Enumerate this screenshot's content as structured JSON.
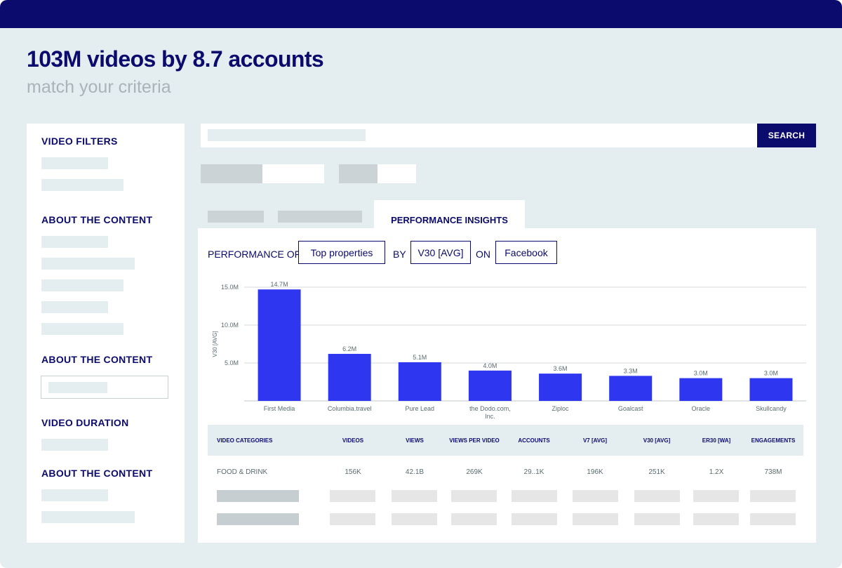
{
  "hero": {
    "title": "103M videos by 8.7 accounts",
    "subtitle": "match your criteria"
  },
  "sidebar": {
    "sections": [
      {
        "title": "VIDEO FILTERS"
      },
      {
        "title": "ABOUT THE CONTENT"
      },
      {
        "title": "ABOUT THE CONTENT"
      },
      {
        "title": "VIDEO DURATION"
      },
      {
        "title": "ABOUT THE CONTENT"
      }
    ]
  },
  "search": {
    "button_label": "SEARCH"
  },
  "tabs": {
    "active_label": "PERFORMANCE INSIGHTS"
  },
  "performance": {
    "prefix": "PERFORMANCE OF",
    "property_select": "Top properties",
    "by_label": "BY",
    "metric_select": "V30 [AVG]",
    "on_label": "ON",
    "platform_select": "Facebook"
  },
  "chart_data": {
    "type": "bar",
    "categories": [
      "First Media",
      "Columbia.travel",
      "Pure Lead",
      "the Dodo.com, Inc.",
      "Ziploc",
      "Goalcast",
      "Oracle",
      "Skullcandy"
    ],
    "values": [
      14.7,
      6.2,
      5.1,
      4.0,
      3.6,
      3.3,
      3.0,
      3.0
    ],
    "value_labels": [
      "14.7M",
      "6.2M",
      "5.1M",
      "4.0M",
      "3.6M",
      "3.3M",
      "3.0M",
      "3.0M"
    ],
    "ylabel": "V30 [AVG]",
    "yticks": [
      "5.0M",
      "10.0M",
      "15.0M"
    ],
    "ylim": [
      0,
      15
    ],
    "grid": true,
    "bar_color": "#2f36ef"
  },
  "table": {
    "headers": [
      "VIDEO CATEGORIES",
      "VIDEOS",
      "VIEWS",
      "VIEWS PER VIDEO",
      "ACCOUNTS",
      "V7 [AVG]",
      "V30 [AVG]",
      "ER30 [WA]",
      "ENGAGEMENTS"
    ],
    "rows": [
      [
        "FOOD & DRINK",
        "156K",
        "42.1B",
        "269K",
        "29..1K",
        "196K",
        "251K",
        "1.2X",
        "738M"
      ]
    ]
  },
  "colors": {
    "navy": "#0b0b6e",
    "background": "#e4eef0",
    "bar": "#2f36ef"
  }
}
